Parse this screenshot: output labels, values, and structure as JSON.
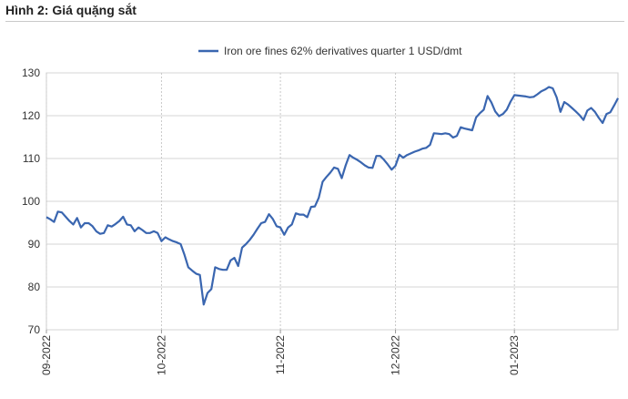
{
  "page_title": "Hình 2: Giá quặng sắt",
  "chart_data": {
    "type": "line",
    "title": "",
    "xlabel": "",
    "ylabel": "",
    "ylim": [
      70,
      130
    ],
    "yticks": [
      70,
      80,
      90,
      100,
      110,
      120,
      130
    ],
    "xticks": [
      {
        "label": "09-2022",
        "x": 0
      },
      {
        "label": "10-2022",
        "x": 30
      },
      {
        "label": "11-2022",
        "x": 61
      },
      {
        "label": "12-2022",
        "x": 91
      },
      {
        "label": "01-2023",
        "x": 122
      }
    ],
    "xlim": [
      0,
      149
    ],
    "grid": true,
    "legend_position": "top",
    "color": "#3a66b0",
    "series": [
      {
        "name": "Iron ore fines 62% derivatives quarter 1 USD/dmt",
        "x": [
          0,
          1,
          2,
          3,
          4,
          5,
          6,
          7,
          8,
          9,
          10,
          11,
          12,
          13,
          14,
          15,
          16,
          17,
          18,
          19,
          20,
          21,
          22,
          23,
          24,
          25,
          26,
          27,
          28,
          29,
          30,
          31,
          32,
          33,
          34,
          35,
          36,
          37,
          38,
          39,
          40,
          41,
          42,
          43,
          44,
          45,
          46,
          47,
          48,
          49,
          50,
          51,
          52,
          53,
          54,
          55,
          56,
          57,
          58,
          59,
          60,
          61,
          62,
          63,
          64,
          65,
          66,
          67,
          68,
          69,
          70,
          71,
          72,
          73,
          74,
          75,
          76,
          77,
          78,
          79,
          80,
          81,
          82,
          83,
          84,
          85,
          86,
          87,
          88,
          89,
          90,
          91,
          92,
          93,
          94,
          95,
          96,
          97,
          98,
          99,
          100,
          101,
          102,
          103,
          104,
          105,
          106,
          107,
          108,
          109,
          110,
          111,
          112,
          113,
          114,
          115,
          116,
          117,
          118,
          119,
          120,
          121,
          122,
          123,
          124,
          125,
          126,
          127,
          128,
          129,
          130,
          131,
          132,
          133,
          134,
          135,
          136,
          137,
          138,
          139,
          140,
          141,
          142,
          143,
          144,
          145,
          146,
          147,
          148,
          149
        ],
        "values": [
          96.3,
          95.8,
          95.2,
          97.6,
          97.4,
          96.4,
          95.4,
          94.6,
          96.1,
          93.9,
          94.9,
          94.9,
          94.2,
          93.0,
          92.4,
          92.6,
          94.4,
          94.1,
          94.7,
          95.4,
          96.4,
          94.6,
          94.4,
          93.0,
          93.9,
          93.3,
          92.6,
          92.6,
          93.0,
          92.6,
          90.7,
          91.6,
          91.1,
          90.7,
          90.4,
          90.0,
          87.5,
          84.6,
          83.8,
          83.1,
          82.8,
          75.9,
          78.6,
          79.5,
          84.6,
          84.2,
          84.0,
          84.0,
          86.2,
          86.8,
          84.9,
          89.2,
          90.0,
          91.0,
          92.2,
          93.6,
          94.9,
          95.2,
          97.0,
          95.9,
          94.2,
          93.9,
          92.2,
          93.9,
          94.6,
          97.2,
          96.9,
          96.9,
          96.3,
          98.7,
          98.8,
          100.8,
          104.6,
          105.7,
          106.7,
          107.9,
          107.6,
          105.4,
          108.4,
          110.8,
          110.2,
          109.7,
          109.1,
          108.4,
          107.9,
          107.8,
          110.6,
          110.6,
          109.7,
          108.6,
          107.4,
          108.3,
          110.9,
          110.2,
          110.8,
          111.2,
          111.6,
          111.9,
          112.3,
          112.5,
          113.2,
          115.9,
          115.8,
          115.7,
          115.9,
          115.7,
          114.9,
          115.3,
          117.3,
          117.0,
          116.8,
          116.6,
          119.6,
          120.6,
          121.4,
          124.6,
          123.1,
          121.0,
          119.9,
          120.4,
          121.4,
          123.3,
          124.8,
          124.7,
          124.6,
          124.5,
          124.3,
          124.4,
          125.0,
          125.7,
          126.1,
          126.7,
          126.4,
          124.3,
          120.9,
          123.2,
          122.6,
          121.8,
          121.0,
          120.1,
          119.0,
          121.2,
          121.8,
          120.9,
          119.5,
          118.3,
          120.4,
          120.8,
          122.4,
          124.1
        ]
      }
    ]
  }
}
